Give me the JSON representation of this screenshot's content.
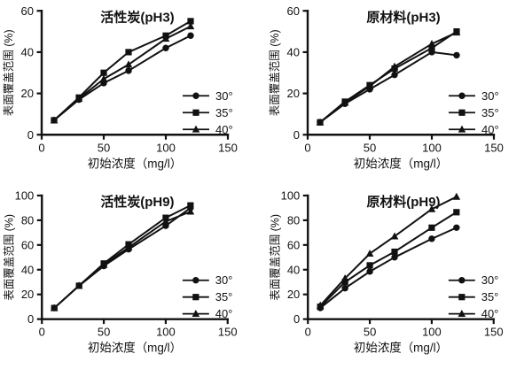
{
  "page": {
    "background": "#ffffff",
    "ink": "#111111"
  },
  "chart_data": [
    {
      "id": "activated-carbon-ph3",
      "type": "line",
      "title": "活性炭(pH3)",
      "xlabel": "初始浓度（mg/l）",
      "ylabel": "表面覆盖范围 (%)",
      "xlim": [
        0,
        150
      ],
      "ylim": [
        0,
        60
      ],
      "xticks": [
        0,
        50,
        100,
        150
      ],
      "yticks": [
        0,
        20,
        40,
        60
      ],
      "x": [
        10,
        30,
        50,
        70,
        100,
        120
      ],
      "series": [
        {
          "name": "30°",
          "marker": "circle",
          "values": [
            7,
            17,
            25,
            31,
            42,
            48
          ]
        },
        {
          "name": "35°",
          "marker": "square",
          "values": [
            7,
            18,
            30,
            40,
            48,
            55
          ]
        },
        {
          "name": "40°",
          "marker": "triangle",
          "values": [
            7,
            17.5,
            27,
            34,
            46.5,
            52.5
          ]
        }
      ],
      "legend_position": "lower right",
      "grid": false
    },
    {
      "id": "raw-material-ph3",
      "type": "line",
      "title": "原材料(pH3)",
      "xlabel": "初始浓度（mg/l）",
      "ylabel": "表面覆盖范围 (%)",
      "xlim": [
        0,
        150
      ],
      "ylim": [
        0,
        60
      ],
      "xticks": [
        0,
        50,
        100,
        150
      ],
      "yticks": [
        0,
        20,
        40,
        60
      ],
      "x": [
        10,
        30,
        50,
        70,
        100,
        120
      ],
      "series": [
        {
          "name": "30°",
          "marker": "circle",
          "values": [
            6,
            15,
            22,
            29,
            40,
            38.5
          ]
        },
        {
          "name": "35°",
          "marker": "square",
          "values": [
            6,
            16,
            24,
            32,
            42,
            50
          ]
        },
        {
          "name": "40°",
          "marker": "triangle",
          "values": [
            6,
            15.5,
            23.5,
            33,
            44,
            49.5
          ]
        }
      ],
      "legend_position": "lower right",
      "grid": false
    },
    {
      "id": "activated-carbon-ph9",
      "type": "line",
      "title": "活性炭(pH9)",
      "xlabel": "初始浓度（mg/l）",
      "ylabel": "表面覆盖范围 (%)",
      "xlim": [
        0,
        150
      ],
      "ylim": [
        0,
        100
      ],
      "xticks": [
        0,
        50,
        100,
        150
      ],
      "yticks": [
        0,
        20,
        40,
        60,
        80,
        100
      ],
      "x": [
        10,
        30,
        50,
        70,
        100,
        120
      ],
      "series": [
        {
          "name": "30°",
          "marker": "circle",
          "values": [
            9,
            27,
            43,
            56.5,
            75.5,
            90
          ]
        },
        {
          "name": "35°",
          "marker": "square",
          "values": [
            9,
            27,
            45,
            60.5,
            82,
            92
          ]
        },
        {
          "name": "40°",
          "marker": "triangle",
          "values": [
            9,
            27,
            44,
            58,
            79,
            87
          ]
        }
      ],
      "legend_position": "lower right",
      "grid": false
    },
    {
      "id": "raw-material-ph9",
      "type": "line",
      "title": "原材料(pH9)",
      "xlabel": "初始浓度（mg/l）",
      "ylabel": "表面覆盖范围 (%)",
      "xlim": [
        0,
        150
      ],
      "ylim": [
        0,
        100
      ],
      "xticks": [
        0,
        50,
        100,
        150
      ],
      "yticks": [
        0,
        20,
        40,
        60,
        80,
        100
      ],
      "x": [
        10,
        30,
        50,
        70,
        100,
        120
      ],
      "series": [
        {
          "name": "30°",
          "marker": "circle",
          "values": [
            9,
            25,
            38.5,
            50,
            65,
            74
          ]
        },
        {
          "name": "35°",
          "marker": "square",
          "values": [
            10,
            30,
            43.5,
            54.5,
            74,
            86.5
          ]
        },
        {
          "name": "40°",
          "marker": "triangle",
          "values": [
            11,
            33,
            53,
            67,
            89,
            99
          ]
        }
      ],
      "legend_position": "lower right",
      "grid": false
    }
  ]
}
